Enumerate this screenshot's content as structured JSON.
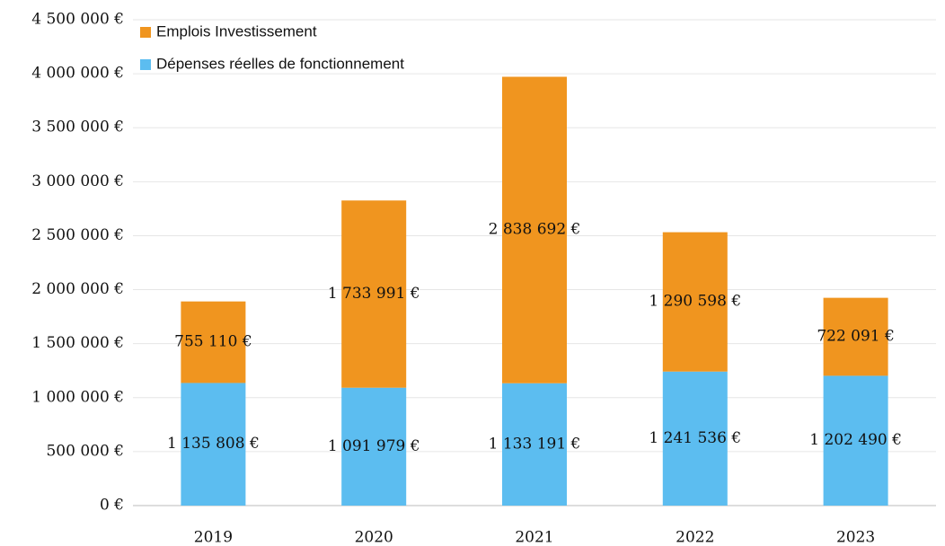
{
  "chart_data": {
    "type": "stacked_bar",
    "categories": [
      "2019",
      "2020",
      "2021",
      "2022",
      "2023"
    ],
    "series": [
      {
        "name": "Dépenses réelles de fonctionnement",
        "color": "#5cbdf0",
        "values": [
          1135808,
          1091979,
          1133191,
          1241536,
          1202490
        ],
        "value_labels": [
          "1 135 808 €",
          "1 091 979 €",
          "1 133 191 €",
          "1 241 536 €",
          "1 202 490 €"
        ]
      },
      {
        "name": "Emplois Investissement",
        "color": "#f0951f",
        "values": [
          755110,
          1733991,
          2838692,
          1290598,
          722091
        ],
        "value_labels": [
          "755 110 €",
          "1 733 991 €",
          "2 838 692 €",
          "1 290 598 €",
          "722 091 €"
        ]
      }
    ],
    "ylim": [
      0,
      4500000
    ],
    "yticks": [
      {
        "value": 0,
        "label": "0 €"
      },
      {
        "value": 500000,
        "label": "500 000 €"
      },
      {
        "value": 1000000,
        "label": "1 000 000 €"
      },
      {
        "value": 1500000,
        "label": "1 500 000 €"
      },
      {
        "value": 2000000,
        "label": "2 000 000 €"
      },
      {
        "value": 2500000,
        "label": "2 500 000 €"
      },
      {
        "value": 3000000,
        "label": "3 000 000 €"
      },
      {
        "value": 3500000,
        "label": "3 500 000 €"
      },
      {
        "value": 4000000,
        "label": "4 000 000 €"
      },
      {
        "value": 4500000,
        "label": "4 500 000 €"
      }
    ],
    "grid": true,
    "legend": "top-left"
  }
}
